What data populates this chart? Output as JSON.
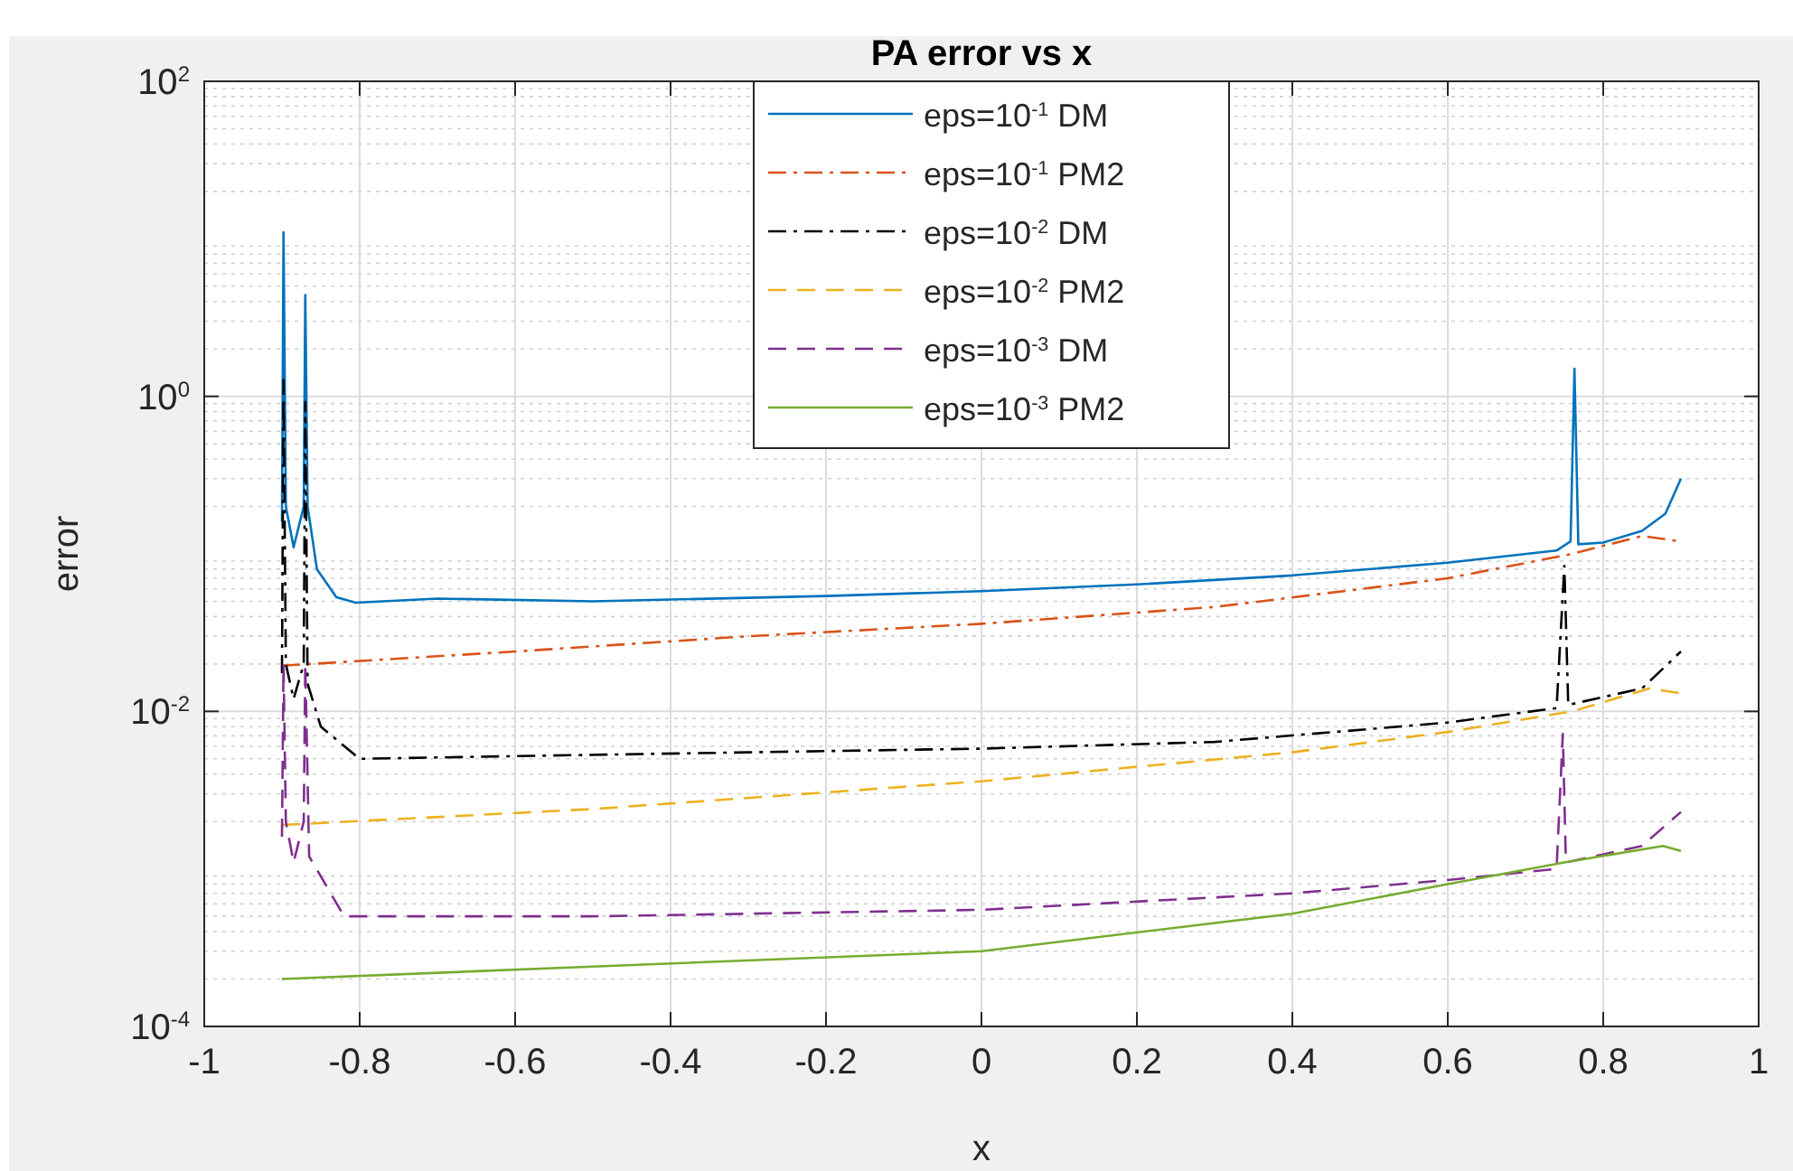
{
  "chart_data": {
    "type": "line",
    "title": "PA error vs x",
    "xlabel": "x",
    "ylabel": "error",
    "log": "y",
    "grid": true,
    "legend": "top",
    "xlim": [
      -1,
      1
    ],
    "xticks": [
      -1,
      -0.8,
      -0.6,
      -0.4,
      -0.2,
      0,
      0.2,
      0.4,
      0.6,
      0.8,
      1
    ],
    "ylim": [
      0.0001,
      100
    ],
    "yticks": [
      {
        "value": 0.0001,
        "label": "10$^{-4}$"
      },
      {
        "value": 0.01,
        "label": "10$^{-2}$"
      },
      {
        "value": 1,
        "label": "10$^{0}$"
      },
      {
        "value": 100,
        "label": "10$^{2}$"
      }
    ],
    "series": [
      {
        "name": "eps=10$^{-1}$ DM",
        "color": "#0072bd",
        "line_style": "solid",
        "x": [
          -0.9,
          -0.898,
          -0.895,
          -0.885,
          -0.872,
          -0.87,
          -0.867,
          -0.855,
          -0.83,
          -0.805,
          -0.7,
          -0.5,
          -0.2,
          0,
          0.2,
          0.4,
          0.6,
          0.74,
          0.758,
          0.763,
          0.768,
          0.8,
          0.85,
          0.88,
          0.9
        ],
        "values": [
          0.16,
          11,
          0.2,
          0.11,
          0.2,
          4.4,
          0.2,
          0.08,
          0.053,
          0.049,
          0.052,
          0.05,
          0.054,
          0.058,
          0.064,
          0.073,
          0.088,
          0.105,
          0.12,
          1.5,
          0.115,
          0.118,
          0.14,
          0.18,
          0.3
        ]
      },
      {
        "name": "eps=10$^{-1}$ PM2",
        "color": "#d95319",
        "line_style": "dashdot",
        "x": [
          -0.9,
          -0.6,
          -0.3,
          0,
          0.3,
          0.6,
          0.76,
          0.85,
          0.9
        ],
        "values": [
          0.0195,
          0.024,
          0.03,
          0.036,
          0.046,
          0.07,
          0.1,
          0.13,
          0.12
        ]
      },
      {
        "name": "eps=10$^{-2}$ DM",
        "color": "#000000",
        "line_style": "dashdot",
        "x": [
          -0.9,
          -0.898,
          -0.895,
          -0.885,
          -0.872,
          -0.87,
          -0.867,
          -0.85,
          -0.8,
          -0.6,
          -0.3,
          0,
          0.3,
          0.6,
          0.74,
          0.75,
          0.755,
          0.85,
          0.9
        ],
        "values": [
          0.0175,
          1.27,
          0.02,
          0.012,
          0.02,
          0.92,
          0.015,
          0.008,
          0.005,
          0.0052,
          0.0055,
          0.0058,
          0.0064,
          0.0085,
          0.0105,
          0.084,
          0.011,
          0.014,
          0.024
        ]
      },
      {
        "name": "eps=10$^{-2}$ PM2",
        "color": "#edb120",
        "line_style": "dashed",
        "x": [
          -0.9,
          -0.5,
          0,
          0.4,
          0.6,
          0.76,
          0.86,
          0.9
        ],
        "values": [
          0.0019,
          0.0024,
          0.0036,
          0.0055,
          0.0074,
          0.01,
          0.014,
          0.013
        ]
      },
      {
        "name": "eps=10$^{-3}$ DM",
        "color": "#7e2f8e",
        "line_style": "dashed",
        "x": [
          -0.9,
          -0.898,
          -0.895,
          -0.885,
          -0.872,
          -0.87,
          -0.865,
          -0.82,
          -0.5,
          0,
          0.4,
          0.6,
          0.74,
          0.748,
          0.752,
          0.85,
          0.9
        ],
        "values": [
          0.0016,
          0.02,
          0.002,
          0.0011,
          0.002,
          0.02,
          0.0012,
          0.0005,
          0.0005,
          0.00055,
          0.0007,
          0.00085,
          0.001,
          0.0072,
          0.0011,
          0.0014,
          0.0023
        ]
      },
      {
        "name": "eps=10$^{-3}$ PM2",
        "color": "#77ac30",
        "line_style": "solid",
        "x": [
          -0.9,
          -0.5,
          0,
          0.4,
          0.6,
          0.75,
          0.877,
          0.9
        ],
        "values": [
          0.0002,
          0.00024,
          0.0003,
          0.00052,
          0.0008,
          0.0011,
          0.0014,
          0.0013
        ]
      }
    ]
  }
}
